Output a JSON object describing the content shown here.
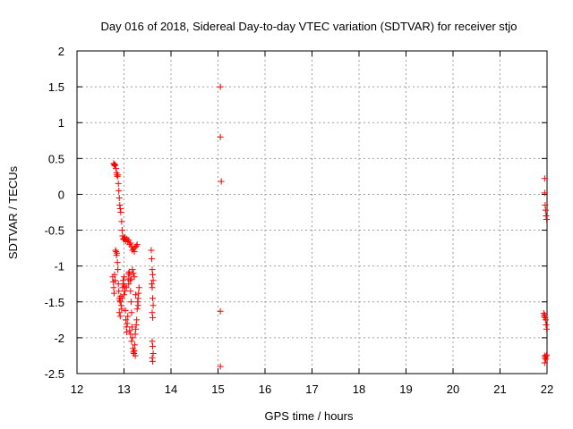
{
  "chart_data": {
    "type": "scatter",
    "title": "Day 016 of 2018, Sidereal Day-to-day VTEC variation (SDTVAR) for receiver stjo",
    "xlabel": "GPS time / hours",
    "ylabel": "SDTVAR / TECUs",
    "xlim": [
      12,
      22
    ],
    "ylim": [
      -2.5,
      2
    ],
    "xticks": [
      "12",
      "13",
      "14",
      "15",
      "16",
      "17",
      "18",
      "19",
      "20",
      "21",
      "22"
    ],
    "yticks": [
      "2",
      "1.5",
      "1",
      "0.5",
      "0",
      "-0.5",
      "-1",
      "-1.5",
      "-2",
      "-2.5"
    ],
    "xtick_values": [
      12,
      13,
      14,
      15,
      16,
      17,
      18,
      19,
      20,
      21,
      22
    ],
    "ytick_values": [
      2,
      1.5,
      1,
      0.5,
      0,
      -0.5,
      -1,
      -1.5,
      -2,
      -2.5
    ],
    "grid": true,
    "marker": "plus",
    "marker_color": "#ff0000",
    "series": [
      {
        "name": "",
        "points": [
          [
            12.78,
            0.43
          ],
          [
            12.79,
            0.42
          ],
          [
            12.8,
            0.4
          ],
          [
            12.81,
            0.41
          ],
          [
            12.83,
            0.36
          ],
          [
            12.84,
            0.3
          ],
          [
            12.85,
            0.27
          ],
          [
            12.86,
            0.25
          ],
          [
            12.87,
            0.27
          ],
          [
            12.88,
            0.15
          ],
          [
            12.89,
            0.05
          ],
          [
            12.9,
            -0.05
          ],
          [
            12.91,
            -0.15
          ],
          [
            12.92,
            -0.2
          ],
          [
            12.93,
            -0.25
          ],
          [
            12.95,
            -0.38
          ],
          [
            12.96,
            -0.5
          ],
          [
            12.97,
            -0.58
          ],
          [
            12.98,
            -0.62
          ],
          [
            13.0,
            -0.63
          ],
          [
            13.02,
            -0.6
          ],
          [
            13.04,
            -0.65
          ],
          [
            13.06,
            -0.62
          ],
          [
            13.08,
            -0.66
          ],
          [
            13.1,
            -0.64
          ],
          [
            13.12,
            -0.7
          ],
          [
            13.14,
            -0.68
          ],
          [
            13.16,
            -0.73
          ],
          [
            13.18,
            -0.78
          ],
          [
            13.2,
            -0.76
          ],
          [
            13.22,
            -0.8
          ],
          [
            13.24,
            -0.74
          ],
          [
            13.26,
            -0.72
          ],
          [
            13.28,
            -0.7
          ],
          [
            12.76,
            -1.15
          ],
          [
            12.77,
            -1.22
          ],
          [
            12.78,
            -1.3
          ],
          [
            12.79,
            -1.38
          ],
          [
            12.8,
            -1.12
          ],
          [
            12.81,
            -1.2
          ],
          [
            12.82,
            -0.78
          ],
          [
            12.83,
            -0.8
          ],
          [
            12.84,
            -0.85
          ],
          [
            12.85,
            -0.82
          ],
          [
            12.86,
            -0.95
          ],
          [
            12.87,
            -1.05
          ],
          [
            12.88,
            -1.25
          ],
          [
            12.89,
            -1.35
          ],
          [
            12.9,
            -1.45
          ],
          [
            12.91,
            -1.48
          ],
          [
            12.92,
            -1.5
          ],
          [
            12.93,
            -1.42
          ],
          [
            12.94,
            -1.55
          ],
          [
            12.95,
            -1.6
          ],
          [
            12.96,
            -1.45
          ],
          [
            12.97,
            -1.3
          ],
          [
            12.98,
            -1.2
          ],
          [
            12.99,
            -1.25
          ],
          [
            13.0,
            -1.15
          ],
          [
            13.01,
            -1.28
          ],
          [
            13.02,
            -1.35
          ],
          [
            13.03,
            -1.62
          ],
          [
            13.04,
            -1.75
          ],
          [
            13.05,
            -1.85
          ],
          [
            13.06,
            -1.92
          ],
          [
            13.07,
            -1.8
          ],
          [
            13.08,
            -1.7
          ],
          [
            13.09,
            -1.18
          ],
          [
            13.1,
            -1.1
          ],
          [
            13.11,
            -1.08
          ],
          [
            13.12,
            -1.12
          ],
          [
            13.13,
            -1.2
          ],
          [
            13.14,
            -1.35
          ],
          [
            13.15,
            -1.5
          ],
          [
            13.16,
            -1.65
          ],
          [
            13.17,
            -1.85
          ],
          [
            13.18,
            -2.0
          ],
          [
            13.19,
            -2.15
          ],
          [
            13.2,
            -2.2
          ],
          [
            13.21,
            -2.22
          ],
          [
            13.22,
            -2.18
          ],
          [
            13.23,
            -2.1
          ],
          [
            13.24,
            -1.95
          ],
          [
            13.25,
            -1.88
          ],
          [
            13.26,
            -1.82
          ],
          [
            13.27,
            -1.75
          ],
          [
            13.28,
            -1.6
          ],
          [
            13.29,
            -1.5
          ],
          [
            13.3,
            -1.45
          ],
          [
            13.31,
            -1.38
          ],
          [
            13.32,
            -1.3
          ],
          [
            13.18,
            -1.05
          ],
          [
            13.2,
            -1.1
          ],
          [
            13.22,
            -1.15
          ],
          [
            12.9,
            -1.65
          ],
          [
            12.92,
            -1.7
          ],
          [
            13.0,
            -1.4
          ],
          [
            13.05,
            -1.3
          ],
          [
            13.1,
            -1.25
          ],
          [
            13.15,
            -1.18
          ],
          [
            13.25,
            -1.4
          ],
          [
            13.3,
            -1.55
          ],
          [
            13.12,
            -1.9
          ],
          [
            13.14,
            -1.95
          ],
          [
            13.16,
            -2.05
          ],
          [
            13.24,
            -2.25
          ],
          [
            13.58,
            -0.78
          ],
          [
            13.59,
            -0.9
          ],
          [
            13.6,
            -1.05
          ],
          [
            13.61,
            -1.12
          ],
          [
            13.62,
            -1.2
          ],
          [
            13.59,
            -1.25
          ],
          [
            13.6,
            -1.3
          ],
          [
            13.61,
            -1.45
          ],
          [
            13.62,
            -1.55
          ],
          [
            13.6,
            -1.65
          ],
          [
            13.61,
            -1.72
          ],
          [
            13.6,
            -2.05
          ],
          [
            13.61,
            -2.12
          ],
          [
            13.62,
            -2.22
          ],
          [
            13.6,
            -2.28
          ],
          [
            13.61,
            -2.33
          ],
          [
            15.05,
            1.5
          ],
          [
            15.05,
            0.8
          ],
          [
            15.07,
            0.18
          ],
          [
            15.05,
            -1.63
          ],
          [
            15.05,
            -2.4
          ],
          [
            21.95,
            0.22
          ],
          [
            21.95,
            0.02
          ],
          [
            21.96,
            -0.15
          ],
          [
            21.97,
            -0.22
          ],
          [
            21.98,
            -0.3
          ],
          [
            21.99,
            -0.35
          ],
          [
            21.93,
            -1.66
          ],
          [
            21.94,
            -1.7
          ],
          [
            21.95,
            -1.68
          ],
          [
            21.96,
            -1.72
          ],
          [
            21.97,
            -1.75
          ],
          [
            21.98,
            -1.82
          ],
          [
            21.99,
            -1.88
          ],
          [
            21.95,
            -2.25
          ],
          [
            21.96,
            -2.28
          ],
          [
            21.97,
            -2.3
          ],
          [
            21.98,
            -2.26
          ],
          [
            21.99,
            -2.24
          ],
          [
            21.95,
            -2.35
          ]
        ]
      }
    ]
  }
}
